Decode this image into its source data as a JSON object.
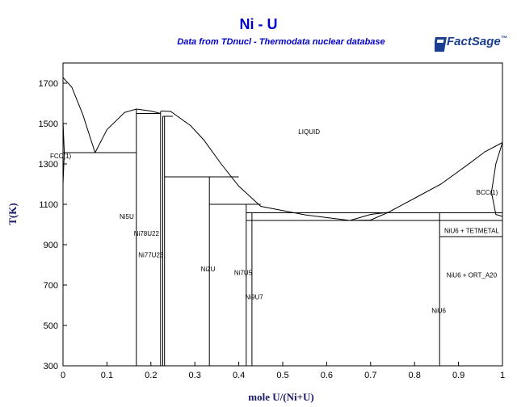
{
  "chart_data": {
    "type": "line",
    "title": "Ni - U",
    "subtitle": "Data from TDnucl - Thermodata nuclear database",
    "logo": "FactSage",
    "xlabel": "mole U/(Ni+U)",
    "ylabel": "T(K)",
    "xlim": [
      0,
      1
    ],
    "ylim": [
      300,
      1800
    ],
    "xticks": [
      0,
      0.1,
      0.2,
      0.3,
      0.4,
      0.5,
      0.6,
      0.7,
      0.8,
      0.9,
      1
    ],
    "xtick_labels": [
      "0",
      "0.1",
      "0.2",
      "0.3",
      "0.4",
      "0.5",
      "0.6",
      "0.7",
      "0.8",
      "0.9",
      "1"
    ],
    "yticks": [
      300,
      500,
      700,
      900,
      1100,
      1300,
      1500,
      1700
    ],
    "ytick_labels": [
      "300",
      "500",
      "700",
      "900",
      "1100",
      "1300",
      "1500",
      "1700"
    ],
    "grid": false,
    "series": [
      {
        "values": [
          [
            0,
            1728
          ],
          [
            0.02,
            1680
          ],
          [
            0.045,
            1545
          ],
          [
            0.073,
            1356
          ]
        ]
      },
      {
        "values": [
          [
            0.073,
            1356
          ],
          [
            0.1,
            1470
          ],
          [
            0.14,
            1555
          ],
          [
            0.167,
            1572
          ],
          [
            0.2,
            1562
          ],
          [
            0.222,
            1550
          ]
        ]
      },
      {
        "values": [
          [
            0.222,
            1562
          ],
          [
            0.245,
            1560
          ],
          [
            0.29,
            1490
          ],
          [
            0.32,
            1420
          ],
          [
            0.36,
            1300
          ],
          [
            0.4,
            1190
          ],
          [
            0.45,
            1090
          ],
          [
            0.55,
            1048
          ],
          [
            0.653,
            1020
          ]
        ]
      },
      {
        "values": [
          [
            0.653,
            1020
          ],
          [
            0.7,
            1050
          ],
          [
            0.74,
            1060
          ],
          [
            0.8,
            1130
          ],
          [
            0.86,
            1200
          ],
          [
            0.92,
            1295
          ],
          [
            0.96,
            1360
          ],
          [
            1,
            1406
          ]
        ]
      },
      {
        "values": [
          [
            0.653,
            1020
          ],
          [
            0.7,
            1022
          ],
          [
            0.74,
            1060
          ]
        ]
      },
      {
        "values": [
          [
            1,
            1406
          ],
          [
            0.985,
            1300
          ],
          [
            0.975,
            1160
          ],
          [
            0.985,
            1050
          ],
          [
            1,
            1040
          ]
        ]
      },
      {
        "values": [
          [
            0,
            1200
          ],
          [
            0.003,
            1356
          ],
          [
            0,
            1510
          ]
        ]
      },
      {
        "values": [
          [
            0,
            1356
          ],
          [
            0.167,
            1356
          ]
        ]
      },
      {
        "values": [
          [
            0.167,
            1550
          ],
          [
            0.222,
            1550
          ]
        ]
      },
      {
        "values": [
          [
            0.227,
            1536
          ],
          [
            0.25,
            1536
          ]
        ]
      },
      {
        "values": [
          [
            0.231,
            1236
          ],
          [
            0.4,
            1236
          ]
        ]
      },
      {
        "values": [
          [
            0.333,
            1100
          ],
          [
            0.45,
            1100
          ]
        ]
      },
      {
        "values": [
          [
            0.417,
            1058
          ],
          [
            1,
            1058
          ]
        ]
      },
      {
        "values": [
          [
            0.417,
            1020
          ],
          [
            1,
            1020
          ]
        ]
      },
      {
        "values": [
          [
            0.857,
            940
          ],
          [
            1,
            940
          ]
        ]
      },
      {
        "values": [
          [
            0.167,
            300
          ],
          [
            0.167,
            1572
          ]
        ]
      },
      {
        "values": [
          [
            0.222,
            300
          ],
          [
            0.222,
            1560
          ]
        ]
      },
      {
        "values": [
          [
            0.227,
            300
          ],
          [
            0.227,
            1536
          ]
        ]
      },
      {
        "values": [
          [
            0.231,
            300
          ],
          [
            0.231,
            1536
          ]
        ]
      },
      {
        "values": [
          [
            0.333,
            300
          ],
          [
            0.333,
            1236
          ]
        ]
      },
      {
        "values": [
          [
            0.417,
            300
          ],
          [
            0.417,
            1100
          ]
        ]
      },
      {
        "values": [
          [
            0.43,
            300
          ],
          [
            0.43,
            1058
          ]
        ]
      },
      {
        "values": [
          [
            0.857,
            300
          ],
          [
            0.857,
            1058
          ]
        ]
      },
      {
        "values": [
          [
            1,
            300
          ],
          [
            1,
            1406
          ]
        ]
      }
    ],
    "labels": [
      {
        "text": "LIQUID",
        "x": 0.56,
        "y": 1460
      },
      {
        "text": "FCC(1)",
        "x": 0.0,
        "y": 1340
      },
      {
        "text": "BCC(1)",
        "x": 0.965,
        "y": 1160
      },
      {
        "text": "Ni5U",
        "x": 0.145,
        "y": 1040
      },
      {
        "text": "Ni78U22",
        "x": 0.19,
        "y": 956
      },
      {
        "text": "Ni77U23",
        "x": 0.2,
        "y": 850
      },
      {
        "text": "Ni2U",
        "x": 0.33,
        "y": 780
      },
      {
        "text": "Ni7U5",
        "x": 0.41,
        "y": 762
      },
      {
        "text": "Ni9U7",
        "x": 0.435,
        "y": 642
      },
      {
        "text": "NiU6 + TETMETAL",
        "x": 0.93,
        "y": 970
      },
      {
        "text": "NiU6 + ORT_A20",
        "x": 0.93,
        "y": 750
      },
      {
        "text": "NiU6",
        "x": 0.855,
        "y": 575
      }
    ]
  }
}
